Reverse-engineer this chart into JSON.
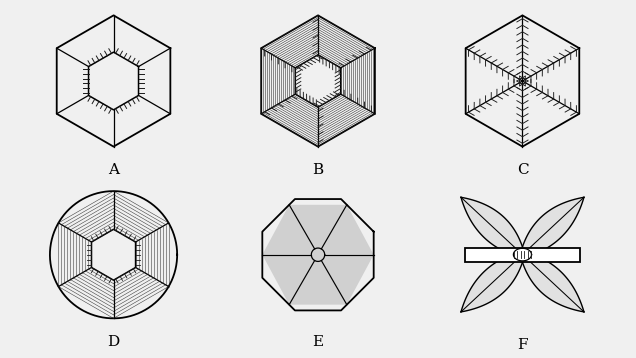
{
  "background": "#f0f0f0",
  "labels": [
    "A",
    "B",
    "C",
    "D",
    "E",
    "F"
  ],
  "label_fontsize": 11,
  "lc": "#1a1a1a"
}
